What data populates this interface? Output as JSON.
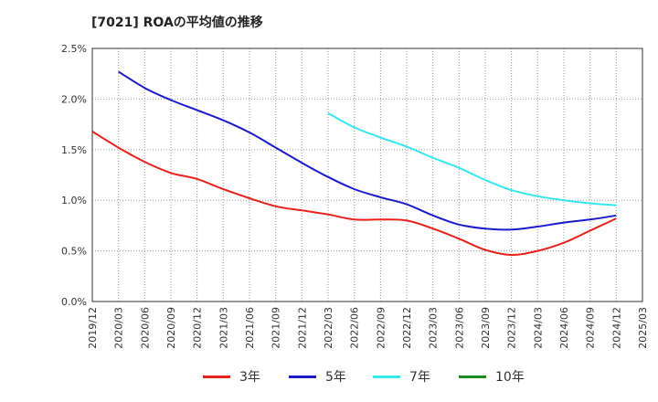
{
  "chart_data": {
    "type": "line",
    "title": "[7021]  ROAの平均値の推移",
    "xlabel": "",
    "ylabel": "",
    "x": [
      "2019/12",
      "2020/03",
      "2020/06",
      "2020/09",
      "2020/12",
      "2021/03",
      "2021/06",
      "2021/09",
      "2021/12",
      "2022/03",
      "2022/06",
      "2022/09",
      "2022/12",
      "2023/03",
      "2023/06",
      "2023/09",
      "2023/12",
      "2024/03",
      "2024/06",
      "2024/09",
      "2024/12",
      "2025/03"
    ],
    "yticks": [
      "0.0%",
      "0.5%",
      "1.0%",
      "1.5%",
      "2.0%",
      "2.5%"
    ],
    "ylim": [
      0,
      2.5
    ],
    "grid": true,
    "legend_position": "bottom",
    "series": [
      {
        "name": "3年",
        "color": "#e8211b",
        "values": [
          1.68,
          1.52,
          1.38,
          1.27,
          1.21,
          1.11,
          1.02,
          0.94,
          0.9,
          0.86,
          0.81,
          0.81,
          0.8,
          0.72,
          0.62,
          0.51,
          0.46,
          0.5,
          0.58,
          0.7,
          0.82,
          null
        ]
      },
      {
        "name": "5年",
        "color": "#1a1acc",
        "values": [
          null,
          2.27,
          2.11,
          1.99,
          1.89,
          1.79,
          1.67,
          1.52,
          1.37,
          1.23,
          1.11,
          1.03,
          0.96,
          0.85,
          0.76,
          0.72,
          0.71,
          0.74,
          0.78,
          0.81,
          0.85,
          null
        ]
      },
      {
        "name": "7年",
        "color": "#33e6f0",
        "values": [
          null,
          null,
          null,
          null,
          null,
          null,
          null,
          null,
          null,
          1.86,
          1.72,
          1.62,
          1.53,
          1.42,
          1.32,
          1.2,
          1.1,
          1.04,
          1.0,
          0.97,
          0.95,
          null
        ]
      },
      {
        "name": "10年",
        "color": "#1f8a1f",
        "values": [
          null,
          null,
          null,
          null,
          null,
          null,
          null,
          null,
          null,
          null,
          null,
          null,
          null,
          null,
          null,
          null,
          null,
          null,
          null,
          null,
          null,
          null
        ]
      }
    ]
  }
}
